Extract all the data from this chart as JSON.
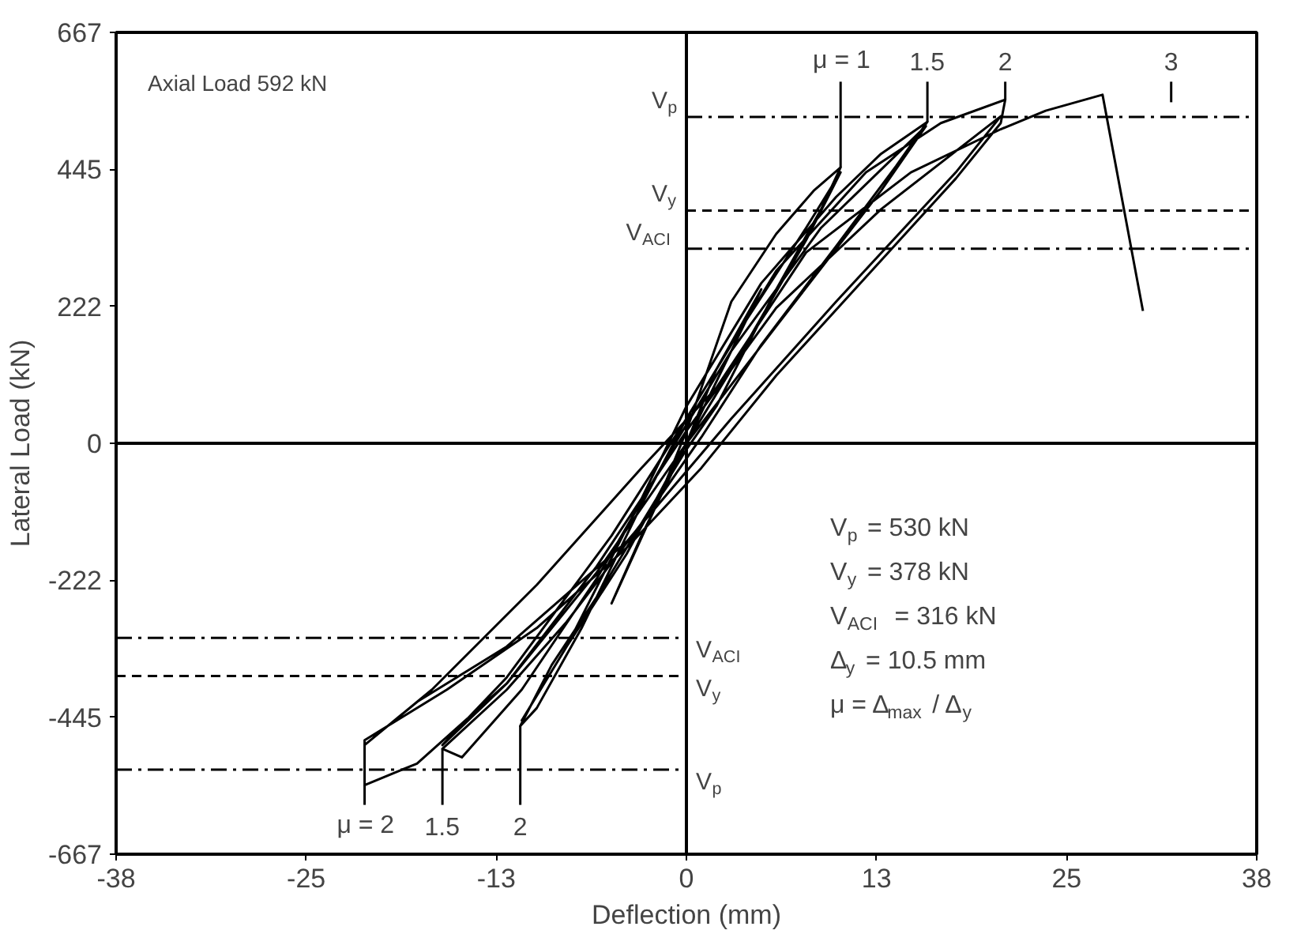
{
  "chart_data": {
    "type": "line",
    "xlabel": "Deflection (mm)",
    "ylabel": "Lateral Load (kN)",
    "xlim": [
      -38.1,
      38.1
    ],
    "ylim": [
      -667.2,
      667.2
    ],
    "xticks": [
      {
        "value": -38.1,
        "label": "-38"
      },
      {
        "value": -25.4,
        "label": "-25"
      },
      {
        "value": -12.7,
        "label": "-13"
      },
      0,
      {
        "value": 12.7,
        "label": "13"
      },
      {
        "value": 25.4,
        "label": "25"
      },
      {
        "value": 38.1,
        "label": "38"
      }
    ],
    "yticks": [
      {
        "value": -667.2,
        "label": "-667"
      },
      {
        "value": -444.8,
        "label": "-445"
      },
      {
        "value": -222.4,
        "label": "-222"
      },
      0,
      {
        "value": 222.4,
        "label": "222"
      },
      {
        "value": 444.8,
        "label": "445"
      },
      {
        "value": 667.2,
        "label": "667"
      }
    ],
    "grid": false,
    "marker": "none",
    "line_style": "solid",
    "series": [
      {
        "color": "#000000",
        "x": [
          0,
          3,
          5,
          2,
          0,
          -3,
          -5,
          -2,
          0,
          3,
          6,
          8.5,
          10.3,
          9,
          6,
          2,
          0,
          -3,
          -6,
          -9,
          -11.1,
          -10,
          -7,
          -3,
          0,
          4,
          8,
          10.3,
          8,
          3,
          0,
          -4,
          -8,
          -11,
          -8,
          -3,
          0,
          5,
          10,
          13,
          16.1,
          14,
          10,
          5,
          1,
          -3,
          -8,
          -12,
          -16.3,
          -15,
          -11,
          -6,
          -1,
          3,
          9,
          16,
          13,
          6,
          0,
          -6,
          -12,
          -16.3,
          -12,
          -5,
          0,
          6,
          12,
          17,
          21.3,
          21,
          18,
          12,
          6,
          1,
          -4,
          -10,
          -16,
          -21.5,
          -21.5,
          -18,
          -12,
          -6,
          0,
          6,
          13,
          21,
          18,
          10,
          3,
          -4,
          -12,
          -18,
          -21.5,
          -17,
          -10,
          -3,
          2,
          8,
          15,
          21,
          24,
          27.8,
          30.5
        ],
        "values": [
          0,
          150,
          250,
          120,
          0,
          -150,
          -260,
          -100,
          20,
          230,
          340,
          410,
          448,
          380,
          250,
          60,
          -10,
          -130,
          -250,
          -360,
          -459,
          -430,
          -300,
          -100,
          40,
          200,
          350,
          440,
          330,
          120,
          0,
          -180,
          -330,
          -450,
          -330,
          -90,
          60,
          260,
          400,
          470,
          522,
          450,
          320,
          160,
          10,
          -130,
          -290,
          -400,
          -496,
          -510,
          -400,
          -220,
          -10,
          150,
          350,
          515,
          410,
          190,
          0,
          -210,
          -390,
          -490,
          -380,
          -150,
          40,
          280,
          440,
          520,
          558,
          520,
          430,
          270,
          110,
          -40,
          -170,
          -300,
          -400,
          -482,
          -555,
          -520,
          -390,
          -200,
          20,
          220,
          380,
          531,
          440,
          230,
          40,
          -160,
          -330,
          -420,
          -490,
          -400,
          -230,
          -40,
          90,
          310,
          440,
          510,
          540,
          566,
          215
        ]
      }
    ],
    "ref_lines": [
      {
        "axis": "x",
        "value": 0,
        "color": "#000000",
        "line_style": "solid"
      },
      {
        "axis": "y",
        "value": 0,
        "color": "#000000",
        "line_style": "solid"
      },
      {
        "axis": "y",
        "value": 530,
        "label": "V$_{p}$",
        "color": "#000000",
        "line_style": "dashdot"
      },
      {
        "axis": "y",
        "value": 378,
        "label": "V$_{y}$",
        "color": "#000000",
        "line_style": "dashed"
      },
      {
        "axis": "y",
        "value": 316,
        "label": "V$_{ACI}$",
        "color": "#000000",
        "line_style": "dashdot"
      },
      {
        "axis": "y",
        "value": -316,
        "label": "V$_{ACI}$",
        "color": "#000000",
        "line_style": "dashdot"
      },
      {
        "axis": "y",
        "value": -378,
        "label": "V$_{y}$",
        "color": "#000000",
        "line_style": "dashed"
      },
      {
        "axis": "y",
        "value": -530,
        "label": "V$_{p}$",
        "color": "#000000",
        "line_style": "dashdot"
      }
    ],
    "annotations": [
      "Axial Load 592 kN",
      "3",
      "V$_{p}$ = 530 kN",
      "V$_{y}$ = 378 kN",
      "V$_{ACI}$ = 316 kN",
      "Δ$_{y}$ = 10.5 mm",
      "μ = Δ$_{max}$ / Δ$_{y}$",
      {
        "text": "μ = 1",
        "x": 10.3,
        "y": 448
      },
      {
        "text": "1.5",
        "x": 16.1,
        "y": 522
      },
      {
        "text": "2",
        "x": 21.3,
        "y": 558
      },
      {
        "text": "μ = 2",
        "x": -21.5,
        "y": -555
      },
      {
        "text": "1.5",
        "x": -16.3,
        "y": -496
      },
      {
        "text": "2",
        "x": -11.1,
        "y": -459
      }
    ]
  }
}
